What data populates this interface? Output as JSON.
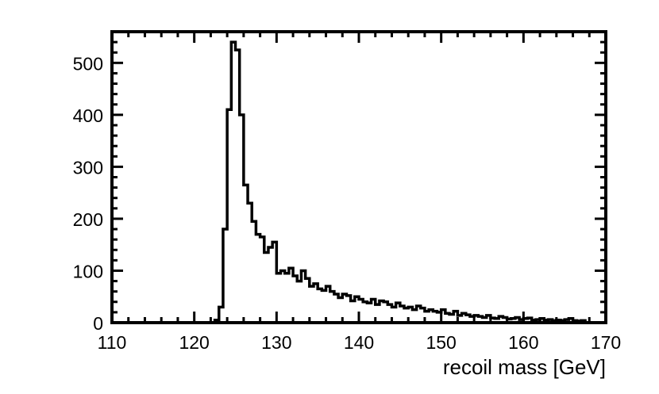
{
  "chart_data": {
    "type": "histogram",
    "title": "",
    "xlabel": "recoil mass [GeV]",
    "ylabel": "",
    "xlim": [
      110,
      170
    ],
    "ylim": [
      0,
      560
    ],
    "bin_width": 0.5,
    "x_start": 122.5,
    "x_ticks": [
      "110",
      "120",
      "130",
      "140",
      "150",
      "160",
      "170"
    ],
    "y_ticks": [
      "0",
      "100",
      "200",
      "300",
      "400",
      "500"
    ],
    "values": [
      5,
      30,
      180,
      410,
      540,
      525,
      400,
      265,
      230,
      195,
      170,
      165,
      135,
      145,
      155,
      95,
      100,
      95,
      105,
      90,
      80,
      100,
      85,
      70,
      75,
      65,
      62,
      70,
      60,
      55,
      48,
      55,
      52,
      42,
      50,
      45,
      40,
      38,
      45,
      35,
      42,
      40,
      35,
      30,
      38,
      32,
      28,
      30,
      25,
      32,
      28,
      22,
      25,
      22,
      20,
      25,
      18,
      16,
      22,
      14,
      18,
      15,
      12,
      14,
      12,
      10,
      14,
      9,
      8,
      12,
      10,
      7,
      8,
      10,
      6,
      8,
      9,
      5,
      6,
      8,
      5,
      6,
      4,
      5,
      4,
      6,
      8,
      4,
      3,
      4
    ]
  }
}
